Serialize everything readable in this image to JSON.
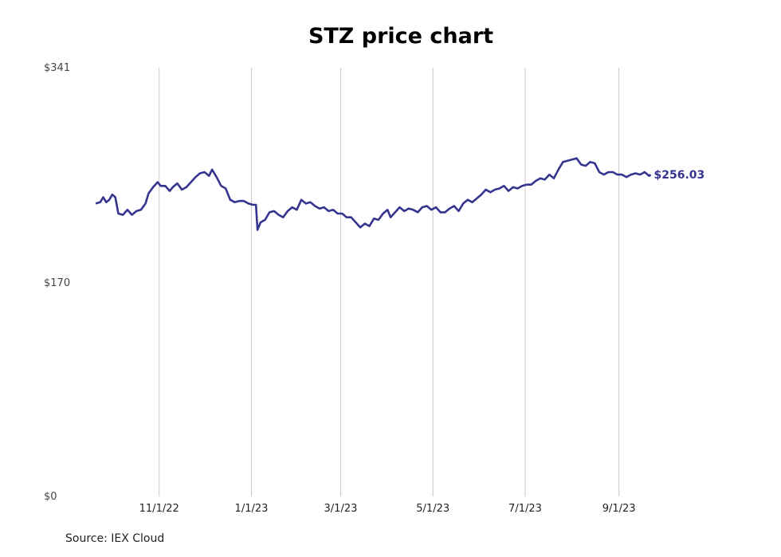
{
  "chart_data": {
    "type": "line",
    "title": "STZ price chart",
    "source": "Source: IEX Cloud",
    "ylim": [
      0,
      341
    ],
    "y_ticks": [
      "$0",
      "$170",
      "$341"
    ],
    "y_tick_values": [
      0,
      170,
      341
    ],
    "x_ticks": [
      "11/1/22",
      "1/1/23",
      "3/1/23",
      "5/1/23",
      "7/1/23",
      "9/1/23"
    ],
    "x_tick_dates": [
      "2022-11-01",
      "2023-01-01",
      "2023-03-01",
      "2023-05-01",
      "2023-07-01",
      "2023-09-01"
    ],
    "xlim": [
      "2022-09-20",
      "2023-11-05"
    ],
    "grid": "vertical",
    "last_value_label": "$256.03",
    "line_color": "#35358f",
    "series": [
      {
        "points": [
          [
            "2022-09-20",
            233
          ],
          [
            "2022-09-23",
            234
          ],
          [
            "2022-09-25",
            238
          ],
          [
            "2022-09-27",
            234
          ],
          [
            "2022-09-29",
            236
          ],
          [
            "2022-10-01",
            240
          ],
          [
            "2022-10-03",
            238
          ],
          [
            "2022-10-05",
            225
          ],
          [
            "2022-10-08",
            224
          ],
          [
            "2022-10-11",
            228
          ],
          [
            "2022-10-14",
            224
          ],
          [
            "2022-10-17",
            227
          ],
          [
            "2022-10-20",
            228
          ],
          [
            "2022-10-23",
            233
          ],
          [
            "2022-10-25",
            241
          ],
          [
            "2022-10-28",
            246
          ],
          [
            "2022-10-31",
            250
          ],
          [
            "2022-11-02",
            247
          ],
          [
            "2022-11-05",
            247
          ],
          [
            "2022-11-08",
            243
          ],
          [
            "2022-11-10",
            246
          ],
          [
            "2022-11-13",
            249
          ],
          [
            "2022-11-16",
            244
          ],
          [
            "2022-11-19",
            246
          ],
          [
            "2022-11-22",
            250
          ],
          [
            "2022-11-25",
            254
          ],
          [
            "2022-11-28",
            257
          ],
          [
            "2022-12-01",
            258
          ],
          [
            "2022-12-04",
            255
          ],
          [
            "2022-12-06",
            260
          ],
          [
            "2022-12-09",
            254
          ],
          [
            "2022-12-12",
            247
          ],
          [
            "2022-12-15",
            245
          ],
          [
            "2022-12-18",
            236
          ],
          [
            "2022-12-21",
            234
          ],
          [
            "2022-12-24",
            235
          ],
          [
            "2022-12-27",
            235
          ],
          [
            "2022-12-30",
            233
          ],
          [
            "2023-01-02",
            232
          ],
          [
            "2023-01-04",
            232
          ],
          [
            "2023-01-05",
            212
          ],
          [
            "2023-01-07",
            218
          ],
          [
            "2023-01-10",
            220
          ],
          [
            "2023-01-13",
            226
          ],
          [
            "2023-01-16",
            227
          ],
          [
            "2023-01-19",
            224
          ],
          [
            "2023-01-22",
            222
          ],
          [
            "2023-01-25",
            227
          ],
          [
            "2023-01-28",
            230
          ],
          [
            "2023-01-31",
            228
          ],
          [
            "2023-02-03",
            236
          ],
          [
            "2023-02-06",
            233
          ],
          [
            "2023-02-09",
            234
          ],
          [
            "2023-02-12",
            231
          ],
          [
            "2023-02-15",
            229
          ],
          [
            "2023-02-18",
            230
          ],
          [
            "2023-02-21",
            227
          ],
          [
            "2023-02-24",
            228
          ],
          [
            "2023-02-27",
            225
          ],
          [
            "2023-03-02",
            225
          ],
          [
            "2023-03-05",
            222
          ],
          [
            "2023-03-08",
            222
          ],
          [
            "2023-03-11",
            218
          ],
          [
            "2023-03-14",
            214
          ],
          [
            "2023-03-17",
            217
          ],
          [
            "2023-03-20",
            215
          ],
          [
            "2023-03-23",
            221
          ],
          [
            "2023-03-26",
            220
          ],
          [
            "2023-03-29",
            225
          ],
          [
            "2023-04-01",
            228
          ],
          [
            "2023-04-03",
            222
          ],
          [
            "2023-04-06",
            226
          ],
          [
            "2023-04-09",
            230
          ],
          [
            "2023-04-12",
            227
          ],
          [
            "2023-04-15",
            229
          ],
          [
            "2023-04-18",
            228
          ],
          [
            "2023-04-21",
            226
          ],
          [
            "2023-04-24",
            230
          ],
          [
            "2023-04-27",
            231
          ],
          [
            "2023-04-30",
            228
          ],
          [
            "2023-05-03",
            230
          ],
          [
            "2023-05-06",
            226
          ],
          [
            "2023-05-09",
            226
          ],
          [
            "2023-05-12",
            229
          ],
          [
            "2023-05-15",
            231
          ],
          [
            "2023-05-18",
            227
          ],
          [
            "2023-05-21",
            233
          ],
          [
            "2023-05-24",
            236
          ],
          [
            "2023-05-27",
            234
          ],
          [
            "2023-05-30",
            237
          ],
          [
            "2023-06-02",
            240
          ],
          [
            "2023-06-05",
            244
          ],
          [
            "2023-06-08",
            242
          ],
          [
            "2023-06-11",
            244
          ],
          [
            "2023-06-14",
            245
          ],
          [
            "2023-06-17",
            247
          ],
          [
            "2023-06-20",
            243
          ],
          [
            "2023-06-23",
            246
          ],
          [
            "2023-06-26",
            245
          ],
          [
            "2023-06-29",
            247
          ],
          [
            "2023-07-02",
            248
          ],
          [
            "2023-07-05",
            248
          ],
          [
            "2023-07-08",
            251
          ],
          [
            "2023-07-11",
            253
          ],
          [
            "2023-07-14",
            252
          ],
          [
            "2023-07-17",
            256
          ],
          [
            "2023-07-20",
            253
          ],
          [
            "2023-07-23",
            260
          ],
          [
            "2023-07-26",
            266
          ],
          [
            "2023-07-29",
            267
          ],
          [
            "2023-08-01",
            268
          ],
          [
            "2023-08-04",
            269
          ],
          [
            "2023-08-07",
            264
          ],
          [
            "2023-08-10",
            263
          ],
          [
            "2023-08-13",
            266
          ],
          [
            "2023-08-16",
            265
          ],
          [
            "2023-08-19",
            258
          ],
          [
            "2023-08-22",
            256
          ],
          [
            "2023-08-25",
            258
          ],
          [
            "2023-08-28",
            258
          ],
          [
            "2023-08-31",
            256
          ],
          [
            "2023-09-03",
            256
          ],
          [
            "2023-09-06",
            254
          ],
          [
            "2023-09-09",
            256
          ],
          [
            "2023-09-12",
            257
          ],
          [
            "2023-09-15",
            256
          ],
          [
            "2023-09-18",
            258
          ],
          [
            "2023-09-21",
            255
          ],
          [
            "2023-09-22",
            256.03
          ]
        ]
      }
    ]
  }
}
